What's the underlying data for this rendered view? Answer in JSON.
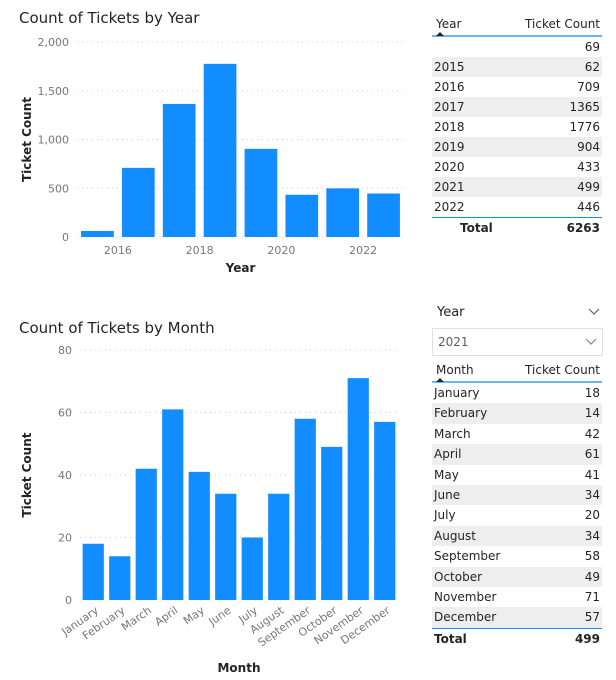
{
  "colors": {
    "bar": "#118dff",
    "accent": "#118dff"
  },
  "chart_data": [
    {
      "type": "bar",
      "title": "Count of Tickets by Year",
      "xlabel": "Year",
      "ylabel": "Ticket Count",
      "categories": [
        "2015",
        "2016",
        "2017",
        "2018",
        "2019",
        "2020",
        "2021",
        "2022"
      ],
      "values": [
        62,
        709,
        1365,
        1776,
        904,
        433,
        499,
        446
      ],
      "x_tick_labels": [
        "2016",
        "2018",
        "2020",
        "2022"
      ],
      "y_ticks": [
        0,
        500,
        1000,
        1500,
        2000
      ],
      "y_tick_labels": [
        "0",
        "500",
        "1,000",
        "1,500",
        "2,000"
      ],
      "ylim": [
        0,
        2000
      ],
      "grid": true
    },
    {
      "type": "bar",
      "title": "Count of Tickets by Month",
      "xlabel": "Month",
      "ylabel": "Ticket Count",
      "categories": [
        "January",
        "February",
        "March",
        "April",
        "May",
        "June",
        "July",
        "August",
        "September",
        "October",
        "November",
        "December"
      ],
      "values": [
        18,
        14,
        42,
        61,
        41,
        34,
        20,
        34,
        58,
        49,
        71,
        57
      ],
      "y_ticks": [
        0,
        20,
        40,
        60,
        80
      ],
      "y_tick_labels": [
        "0",
        "20",
        "40",
        "60",
        "80"
      ],
      "ylim": [
        0,
        80
      ],
      "grid": true
    }
  ],
  "year_table": {
    "headers": [
      "Year",
      "Ticket Count"
    ],
    "rows": [
      [
        "",
        "69"
      ],
      [
        "2015",
        "62"
      ],
      [
        "2016",
        "709"
      ],
      [
        "2017",
        "1365"
      ],
      [
        "2018",
        "1776"
      ],
      [
        "2019",
        "904"
      ],
      [
        "2020",
        "433"
      ],
      [
        "2021",
        "499"
      ],
      [
        "2022",
        "446"
      ]
    ],
    "total": [
      "Total",
      "6263"
    ]
  },
  "slicer": {
    "label": "Year",
    "value": "2021"
  },
  "month_table": {
    "headers": [
      "Month",
      "Ticket Count"
    ],
    "rows": [
      [
        "January",
        "18"
      ],
      [
        "February",
        "14"
      ],
      [
        "March",
        "42"
      ],
      [
        "April",
        "61"
      ],
      [
        "May",
        "41"
      ],
      [
        "June",
        "34"
      ],
      [
        "July",
        "20"
      ],
      [
        "August",
        "34"
      ],
      [
        "September",
        "58"
      ],
      [
        "October",
        "49"
      ],
      [
        "November",
        "71"
      ],
      [
        "December",
        "57"
      ]
    ],
    "total": [
      "Total",
      "499"
    ]
  }
}
